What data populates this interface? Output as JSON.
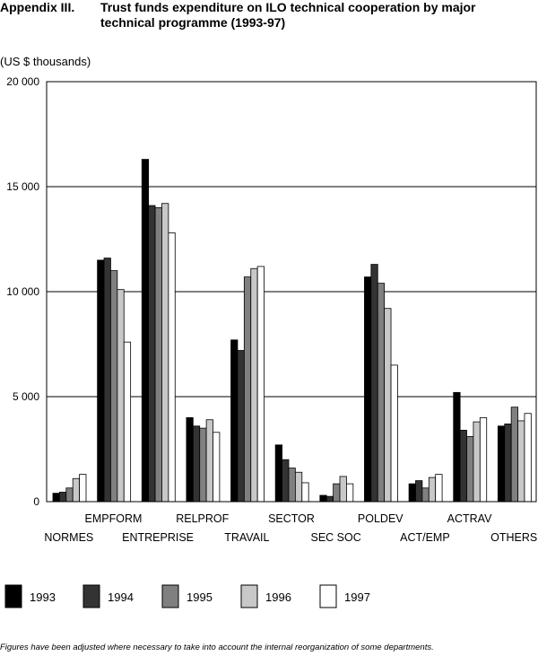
{
  "header": {
    "label": "Appendix III.",
    "title": "Trust funds expenditure on ILO technical cooperation by major technical programme (1993-97)"
  },
  "units_label": "(US $ thousands)",
  "footnote": "Figures have been adjusted where necessary to take into account the internal reorganization of some departments.",
  "chart_data": {
    "type": "bar",
    "title": "Trust funds expenditure on ILO technical cooperation by major technical programme (1993-97)",
    "ylabel": "(US $ thousands)",
    "ylim": [
      0,
      20000
    ],
    "yticks": [
      0,
      5000,
      10000,
      15000,
      20000
    ],
    "ytick_labels": [
      "0",
      "5 000",
      "10 000",
      "15 000",
      "20 000"
    ],
    "grid": true,
    "legend_position": "bottom",
    "categories": [
      "NORMES",
      "EMPFORM",
      "ENTREPRISE",
      "RELPROF",
      "TRAVAIL",
      "SECTOR",
      "SEC SOC",
      "POLDEV",
      "ACT/EMP",
      "ACTRAV",
      "OTHERS"
    ],
    "series": [
      {
        "name": "1993",
        "color": "#000000",
        "values": [
          400,
          11500,
          16300,
          4000,
          7700,
          2700,
          300,
          10700,
          850,
          5200,
          3600
        ]
      },
      {
        "name": "1994",
        "color": "#333333",
        "values": [
          450,
          11600,
          14100,
          3600,
          7200,
          2000,
          250,
          11300,
          1000,
          3400,
          3700
        ]
      },
      {
        "name": "1995",
        "color": "#808080",
        "values": [
          650,
          11000,
          14000,
          3500,
          10700,
          1600,
          850,
          10400,
          650,
          3100,
          4500
        ]
      },
      {
        "name": "1996",
        "color": "#c8c8c8",
        "values": [
          1100,
          10100,
          14200,
          3900,
          11100,
          1400,
          1200,
          9200,
          1150,
          3800,
          3850
        ]
      },
      {
        "name": "1997",
        "color": "#ffffff",
        "values": [
          1300,
          7600,
          12800,
          3300,
          11200,
          900,
          850,
          6500,
          1300,
          4000,
          4200
        ]
      }
    ]
  }
}
